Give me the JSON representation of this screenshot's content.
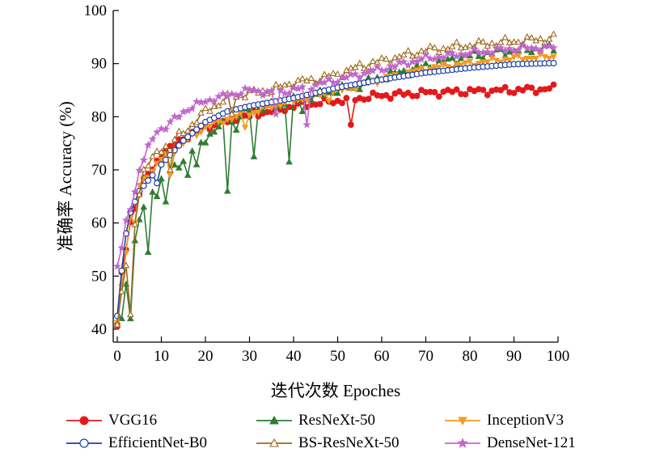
{
  "chart_data": {
    "type": "line",
    "xlabel": "迭代次数 Epoches",
    "ylabel": "准确率 Accuracy (%)",
    "xlim": [
      0,
      100
    ],
    "ylim": [
      40,
      100
    ],
    "xticks": [
      "0",
      "10",
      "20",
      "30",
      "40",
      "50",
      "60",
      "70",
      "80",
      "90",
      "100"
    ],
    "yticks": [
      "40",
      "50",
      "60",
      "70",
      "80",
      "90",
      "100"
    ],
    "grid": false,
    "legend_position": "bottom",
    "series": [
      {
        "name": "VGG16",
        "color": "#e31a1c",
        "marker": "circle-filled",
        "anchors": [
          [
            0,
            40.5
          ],
          [
            1,
            50
          ],
          [
            2,
            55
          ],
          [
            3,
            60
          ],
          [
            4,
            63
          ],
          [
            5,
            66
          ],
          [
            6,
            68
          ],
          [
            8,
            70
          ],
          [
            10,
            73
          ],
          [
            12,
            74
          ],
          [
            15,
            76
          ],
          [
            20,
            78
          ],
          [
            25,
            79.5
          ],
          [
            30,
            80.5
          ],
          [
            35,
            81
          ],
          [
            40,
            82
          ],
          [
            45,
            82.5
          ],
          [
            50,
            83
          ],
          [
            55,
            83.5
          ],
          [
            60,
            84
          ],
          [
            70,
            84.5
          ],
          [
            80,
            84.8
          ],
          [
            90,
            85
          ],
          [
            99,
            85.3
          ]
        ],
        "jitter": 0.8,
        "dips": {
          "53": 78.5,
          "25": 79,
          "30": 80
        }
      },
      {
        "name": "ResNeXt-50",
        "color": "#2e7d32",
        "marker": "triangle-filled",
        "anchors": [
          [
            0,
            41
          ],
          [
            1,
            42
          ],
          [
            2,
            46
          ],
          [
            3,
            50
          ],
          [
            4,
            57
          ],
          [
            5,
            60
          ],
          [
            6,
            63
          ],
          [
            8,
            66
          ],
          [
            10,
            68
          ],
          [
            15,
            72
          ],
          [
            20,
            76
          ],
          [
            25,
            79
          ],
          [
            30,
            81
          ],
          [
            35,
            82
          ],
          [
            40,
            83
          ],
          [
            45,
            84
          ],
          [
            50,
            85
          ],
          [
            55,
            86
          ],
          [
            60,
            87.5
          ],
          [
            70,
            89.5
          ],
          [
            80,
            91.5
          ],
          [
            90,
            92.5
          ],
          [
            99,
            93
          ]
        ],
        "jitter": 1.0,
        "dips": {
          "2": 48.5,
          "3": 42,
          "7": 54.5,
          "9": 65,
          "11": 64,
          "16": 69,
          "18": 71,
          "25": 66,
          "27": 77.5,
          "31": 72.5,
          "39": 71.5,
          "42": 81
        }
      },
      {
        "name": "InceptionV3",
        "color": "#f59a23",
        "marker": "triangle-down-filled",
        "anchors": [
          [
            0,
            41
          ],
          [
            1,
            48
          ],
          [
            2,
            55
          ],
          [
            3,
            61
          ],
          [
            4,
            65
          ],
          [
            5,
            67
          ],
          [
            7,
            69
          ],
          [
            10,
            72
          ],
          [
            15,
            75
          ],
          [
            20,
            78
          ],
          [
            25,
            79.5
          ],
          [
            30,
            80.5
          ],
          [
            35,
            82
          ],
          [
            40,
            83
          ],
          [
            45,
            84
          ],
          [
            50,
            84.8
          ],
          [
            60,
            87
          ],
          [
            70,
            89
          ],
          [
            80,
            90
          ],
          [
            90,
            91
          ],
          [
            99,
            91.3
          ]
        ],
        "jitter": 0.6,
        "dips": {
          "4": 60,
          "12": 69,
          "29": 78,
          "48": 83
        }
      },
      {
        "name": "EfficientNet-B0",
        "color": "#1f3fa6",
        "marker": "circle-open",
        "anchors": [
          [
            0,
            42.5
          ],
          [
            1,
            51
          ],
          [
            2,
            58
          ],
          [
            3,
            62
          ],
          [
            4,
            64
          ],
          [
            5,
            66
          ],
          [
            7,
            68
          ],
          [
            10,
            71
          ],
          [
            15,
            75.5
          ],
          [
            20,
            79
          ],
          [
            25,
            81
          ],
          [
            30,
            82
          ],
          [
            40,
            83.5
          ],
          [
            50,
            85.5
          ],
          [
            60,
            87
          ],
          [
            70,
            88.3
          ],
          [
            80,
            89.2
          ],
          [
            90,
            89.9
          ],
          [
            99,
            90.1
          ]
        ],
        "jitter": 0.0,
        "dips": {
          "9": 67.5
        }
      },
      {
        "name": "BS-ResNeXt-50",
        "color": "#9c6a1d",
        "marker": "triangle-open",
        "anchors": [
          [
            0,
            41
          ],
          [
            1,
            47
          ],
          [
            2,
            52
          ],
          [
            3,
            42
          ],
          [
            4,
            60
          ],
          [
            5,
            66
          ],
          [
            6,
            70
          ],
          [
            8,
            72
          ],
          [
            10,
            74
          ],
          [
            15,
            77
          ],
          [
            20,
            81
          ],
          [
            25,
            83.5
          ],
          [
            30,
            84.5
          ],
          [
            35,
            85
          ],
          [
            40,
            86.5
          ],
          [
            45,
            87
          ],
          [
            50,
            88
          ],
          [
            55,
            89.5
          ],
          [
            60,
            90.5
          ],
          [
            70,
            92.5
          ],
          [
            80,
            93.5
          ],
          [
            90,
            94.2
          ],
          [
            99,
            94.8
          ]
        ],
        "jitter": 0.9,
        "dips": {
          "12": 70,
          "26": 80.5
        }
      },
      {
        "name": "DenseNet-121",
        "color": "#c266cc",
        "marker": "star-filled",
        "anchors": [
          [
            0,
            52
          ],
          [
            1,
            55
          ],
          [
            2,
            60
          ],
          [
            3,
            63
          ],
          [
            4,
            66
          ],
          [
            5,
            70
          ],
          [
            7,
            74
          ],
          [
            9,
            77.5
          ],
          [
            11,
            78
          ],
          [
            15,
            81
          ],
          [
            20,
            83
          ],
          [
            25,
            84
          ],
          [
            30,
            85
          ],
          [
            35,
            84.5
          ],
          [
            40,
            85
          ],
          [
            45,
            86
          ],
          [
            50,
            87
          ],
          [
            60,
            89
          ],
          [
            70,
            91
          ],
          [
            80,
            92
          ],
          [
            90,
            92.8
          ],
          [
            99,
            93
          ]
        ],
        "jitter": 0.7,
        "dips": {
          "43": 78.5,
          "36": 80.5
        }
      }
    ]
  }
}
